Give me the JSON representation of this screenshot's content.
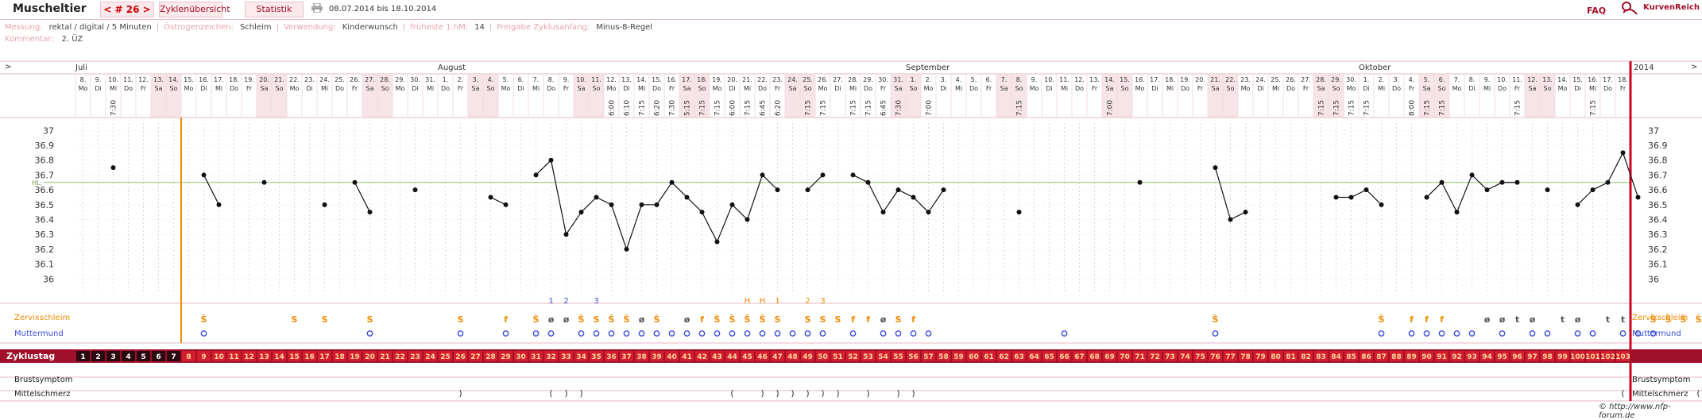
{
  "header": {
    "app_title": "Muscheltier",
    "cycle_nav": "< # 26 >",
    "tab_overview": "Zyklenübersicht",
    "tab_stats": "Statistik",
    "date_range": "08.07.2014 bis 18.10.2014",
    "faq": "FAQ",
    "brand": "KurvenReich"
  },
  "info": {
    "measure_label": "Messung:",
    "measure_value": "rektal / digital / 5 Minuten",
    "estrogen_label": "Östrogenzeichen:",
    "estrogen_value": "Schleim",
    "use_label": "Verwendung:",
    "use_value": "Kinderwunsch",
    "earliest_label": "früheste 1.hM:",
    "earliest_value": "14",
    "release_label": "Freigabe Zyklusanfang:",
    "release_value": "Minus-8-Regel",
    "comment_label": "Kommentar:",
    "comment_value": "2. ÜZ"
  },
  "colors": {
    "accent": "#a0102a",
    "weekend": "#f7e4e8",
    "coverline": "#8fbf6b",
    "marker": "#f08a00",
    "cervix": "#3b4fd6"
  },
  "chart_data": {
    "type": "line",
    "title": "",
    "ylabel": "",
    "ylim": [
      35.9,
      37.05
    ],
    "yticks": [
      36,
      36.1,
      36.2,
      36.3,
      36.4,
      36.5,
      36.6,
      36.7,
      36.8,
      36.9,
      37
    ],
    "coverline": 36.65,
    "coverline_label": "HL:",
    "year": "2014",
    "start_weekday": 1,
    "months": [
      {
        "day": 1,
        "label": "Juli"
      },
      {
        "day": 25,
        "label": "August"
      },
      {
        "day": 56,
        "label": "September"
      },
      {
        "day": 86,
        "label": "Oktober"
      }
    ],
    "dates": [
      8,
      9,
      10,
      11,
      12,
      13,
      14,
      15,
      16,
      17,
      18,
      19,
      20,
      21,
      22,
      23,
      24,
      25,
      26,
      27,
      28,
      29,
      30,
      31,
      1,
      2,
      3,
      4,
      5,
      6,
      7,
      8,
      9,
      10,
      11,
      12,
      13,
      14,
      15,
      16,
      17,
      18,
      19,
      20,
      21,
      22,
      23,
      24,
      25,
      26,
      27,
      28,
      29,
      30,
      31,
      1,
      2,
      3,
      4,
      5,
      6,
      7,
      8,
      9,
      10,
      11,
      12,
      13,
      14,
      15,
      16,
      17,
      18,
      19,
      20,
      21,
      22,
      23,
      24,
      25,
      26,
      27,
      28,
      29,
      30,
      1,
      2,
      3,
      4,
      5,
      6,
      7,
      8,
      9,
      10,
      11,
      12,
      13,
      14,
      15,
      16,
      17,
      18
    ],
    "weekdays": [
      "Mo",
      "Di",
      "Mi",
      "Do",
      "Fr",
      "Sa",
      "So"
    ],
    "times": {
      "3": "7:30",
      "36": "6:00",
      "37": "6:10",
      "38": "7:15",
      "39": "6:20",
      "40": "7:30",
      "41": "5:15",
      "42": "7:15",
      "43": "7:15",
      "44": "6:00",
      "45": "7:15",
      "46": "6:45",
      "47": "6:20",
      "49": "7:15",
      "50": "7:15",
      "52": "7:15",
      "53": "7:15",
      "54": "6:45",
      "55": "7:30",
      "57": "7:00",
      "63": "7:15",
      "69": "7:00",
      "83": "7:15",
      "84": "7:15",
      "85": "7:15",
      "86": "7:15",
      "89": "8:00",
      "90": "7:15",
      "91": "7:15",
      "96": "7:15",
      "101": "7:15"
    },
    "temps": [
      [
        3,
        36.75
      ],
      [
        9,
        36.7
      ],
      [
        10,
        36.5
      ],
      [
        13,
        36.65
      ],
      [
        17,
        36.5
      ],
      [
        19,
        36.65
      ],
      [
        20,
        36.45
      ],
      [
        23,
        36.6
      ],
      [
        28,
        36.55
      ],
      [
        29,
        36.5
      ],
      [
        31,
        36.7
      ],
      [
        32,
        36.8
      ],
      [
        33,
        36.3
      ],
      [
        34,
        36.45
      ],
      [
        35,
        36.55
      ],
      [
        36,
        36.5
      ],
      [
        37,
        36.2
      ],
      [
        38,
        36.5
      ],
      [
        39,
        36.5
      ],
      [
        40,
        36.65
      ],
      [
        41,
        36.55
      ],
      [
        42,
        36.45
      ],
      [
        43,
        36.25
      ],
      [
        44,
        36.5
      ],
      [
        45,
        36.4
      ],
      [
        46,
        36.7
      ],
      [
        47,
        36.6
      ],
      [
        49,
        36.6
      ],
      [
        50,
        36.7
      ],
      [
        52,
        36.7
      ],
      [
        53,
        36.65
      ],
      [
        54,
        36.45
      ],
      [
        55,
        36.6
      ],
      [
        56,
        36.55
      ],
      [
        57,
        36.45
      ],
      [
        58,
        36.6
      ],
      [
        63,
        36.45
      ],
      [
        71,
        36.65
      ],
      [
        76,
        36.75
      ],
      [
        77,
        36.4
      ],
      [
        78,
        36.45
      ],
      [
        84,
        36.55
      ],
      [
        85,
        36.55
      ],
      [
        86,
        36.6
      ],
      [
        87,
        36.5
      ],
      [
        90,
        36.55
      ],
      [
        91,
        36.65
      ],
      [
        92,
        36.45
      ],
      [
        93,
        36.7
      ],
      [
        94,
        36.6
      ],
      [
        95,
        36.65
      ],
      [
        96,
        36.65
      ],
      [
        98,
        36.6
      ],
      [
        100,
        36.5
      ],
      [
        101,
        36.6
      ],
      [
        102,
        36.65
      ],
      [
        103,
        36.85
      ],
      [
        104,
        36.55
      ]
    ],
    "markers": {
      "32": "1",
      "33": "2",
      "35": "3",
      "45": "H",
      "46": "H",
      "47": "1",
      "49": "2",
      "50": "3"
    },
    "mucus": {
      "9": "Ŝ",
      "15": "S",
      "17": "S",
      "20": "S",
      "26": "S",
      "29": "f",
      "31": "Ŝ",
      "32": "ø",
      "33": "ø",
      "34": "Ŝ",
      "35": "S",
      "36": "Ŝ",
      "37": "Ŝ",
      "38": "ø",
      "39": "Ŝ",
      "41": "ø",
      "42": "f",
      "43": "Ŝ",
      "44": "Ŝ",
      "45": "Ŝ",
      "46": "Ŝ",
      "47": "S",
      "49": "S",
      "50": "S",
      "51": "S",
      "52": "f",
      "53": "f",
      "54": "ø",
      "55": "S",
      "56": "f",
      "76": "Ŝ",
      "87": "Ŝ",
      "89": "f",
      "90": "f",
      "91": "f",
      "94": "ø",
      "95": "ø",
      "96": "t",
      "97": "ø",
      "99": "t",
      "100": "ø",
      "102": "t",
      "103": "t",
      "105": "Ŝ",
      "106": "Ŝ",
      "107": "Ŝ",
      "108": "Ŝ"
    },
    "cervix": [
      9,
      20,
      26,
      29,
      31,
      32,
      34,
      35,
      36,
      37,
      38,
      39,
      40,
      41,
      42,
      43,
      44,
      45,
      46,
      47,
      48,
      49,
      50,
      52,
      54,
      55,
      56,
      57,
      66,
      76,
      87,
      89,
      90,
      91,
      92,
      93,
      95,
      97,
      98,
      100,
      101,
      103,
      104,
      105
    ],
    "pain": {
      "26": ")",
      "32": "(",
      "33": ")",
      "34": ")",
      "44": "(",
      "46": ")",
      "47": ")",
      "48": ")",
      "49": ")",
      "50": ")",
      "51": ")",
      "53": ")",
      "55": ")",
      "56": ")",
      "103": "(",
      "108": "("
    },
    "row_labels": {
      "mucus": "Zervixschleim",
      "cervix": "Muttermund",
      "cycleday": "Zyklustag",
      "breast": "Brustsymptom",
      "pain": "Mittelschmerz"
    },
    "bleeding_days": [
      1,
      2,
      3,
      4,
      5,
      6,
      7
    ],
    "cycle_days_total": 103
  },
  "footer": {
    "credit": "© http://www.nfp-forum.de"
  }
}
